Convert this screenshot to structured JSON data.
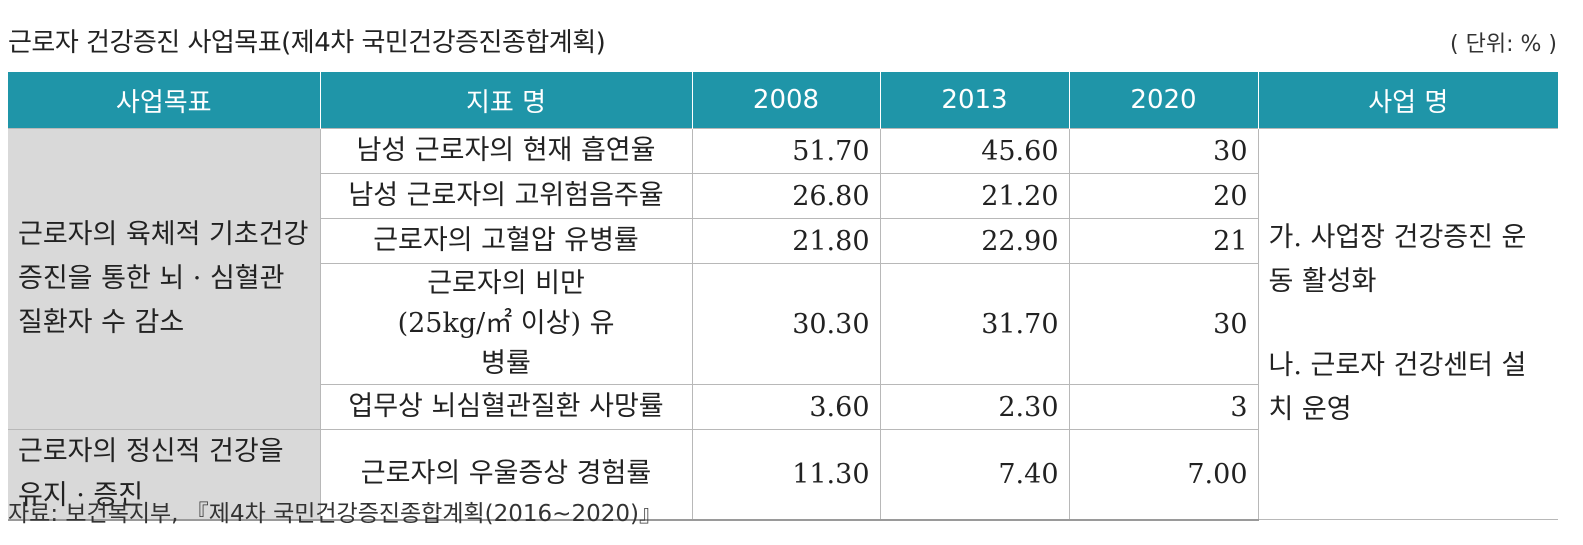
{
  "title": "근로자 건강증진 사업목표(제4차 국민건강증진종합계획)",
  "unit": "( 단위: % )",
  "headers": [
    "사업목표",
    "지표 명",
    "2008",
    "2013",
    "2020",
    "사업 명"
  ],
  "goals": [
    "근로자의 육체적 기초건강 증진을 통한 뇌 · 심혈관 질환자 수 감소",
    "근로자의 정신적 건강을 유지 · 증진"
  ],
  "rows": [
    {
      "indicator": "남성 근로자의 현재 흡연율",
      "v2008": "51.70",
      "v2013": "45.60",
      "v2020": "30"
    },
    {
      "indicator": "남성 근로자의 고위험음주율",
      "v2008": "26.80",
      "v2013": "21.20",
      "v2020": "20"
    },
    {
      "indicator": "근로자의 고혈압 유병률",
      "v2008": "21.80",
      "v2013": "22.90",
      "v2020": "21"
    },
    {
      "indicator": "근로자의 비만 (25kg/㎡ 이상) 유병률",
      "v2008": "30.30",
      "v2013": "31.70",
      "v2020": "30"
    },
    {
      "indicator": "업무상 뇌심혈관질환 사망률",
      "v2008": "3.60",
      "v2013": "2.30",
      "v2020": "3"
    },
    {
      "indicator": "근로자의 우울증상 경험률",
      "v2008": "11.30",
      "v2013": "7.40",
      "v2020": "7.00"
    }
  ],
  "business": [
    "가. 사업장 건강증진 운동 활성화",
    "나. 근로자 건강센터 설치 운영"
  ],
  "source": "자료: 보건복지부, 『제4차 국민건강증진종합계획(2016~2020)』"
}
